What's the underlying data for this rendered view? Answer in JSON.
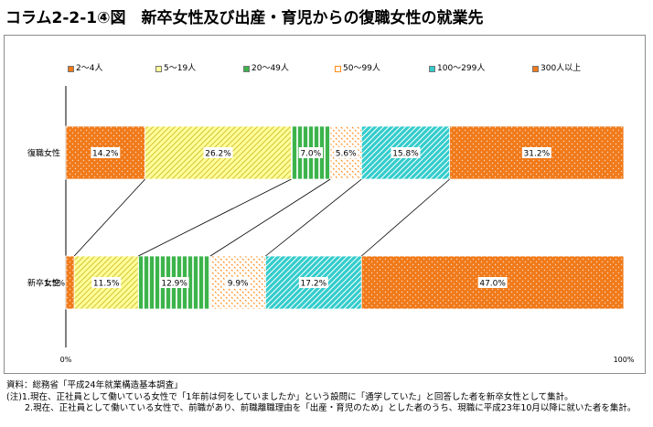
{
  "title": "コラム2-2-1④図　新卒女性及び出産・育児からの復職女性の就業先",
  "chart_data": {
    "type": "bar",
    "orientation": "horizontal",
    "stacked": "percent",
    "categories": [
      "復職女性",
      "新卒女性"
    ],
    "series": [
      {
        "name": "2～4人",
        "color": "#f07a1a",
        "pattern": "dots",
        "values": [
          14.2,
          1.5
        ]
      },
      {
        "name": "5～19人",
        "color": "#ffff99",
        "pattern": "diagonal",
        "values": [
          26.2,
          11.5
        ]
      },
      {
        "name": "20～49人",
        "color": "#3cb44b",
        "pattern": "vertical",
        "values": [
          7.0,
          12.9
        ]
      },
      {
        "name": "50～99人",
        "color": "#ff8c1a",
        "pattern": "dashes",
        "values": [
          5.6,
          9.9
        ]
      },
      {
        "name": "100～299人",
        "color": "#33cccc",
        "pattern": "diagonal",
        "values": [
          15.8,
          17.2
        ]
      },
      {
        "name": "300人以上",
        "color": "#f07a1a",
        "pattern": "dots",
        "values": [
          31.2,
          47.0
        ]
      }
    ],
    "data_labels": [
      [
        "14.2%",
        "26.2%",
        "7.0%",
        "5.6%",
        "15.8%",
        "31.2%"
      ],
      [
        "1.5%",
        "11.5%",
        "12.9%",
        "9.9%",
        "17.2%",
        "47.0%"
      ]
    ],
    "xlim": [
      0,
      100
    ],
    "x_ticks": [
      "0%",
      "100%"
    ],
    "legend_position": "top",
    "series_lines": true
  },
  "notes": [
    "資料：総務省「平成24年就業構造基本調査」",
    "(注)1.現在、正社員として働いている女性で「1年前は何をしていましたか」という設問に「通学していた」と回答した者を新卒女性として集計。",
    "2.現在、正社員として働いている女性で、前職があり、前職離職理由を「出産・育児のため」とした者のうち、現職に平成23年10月以降に就いた者を集計。"
  ]
}
